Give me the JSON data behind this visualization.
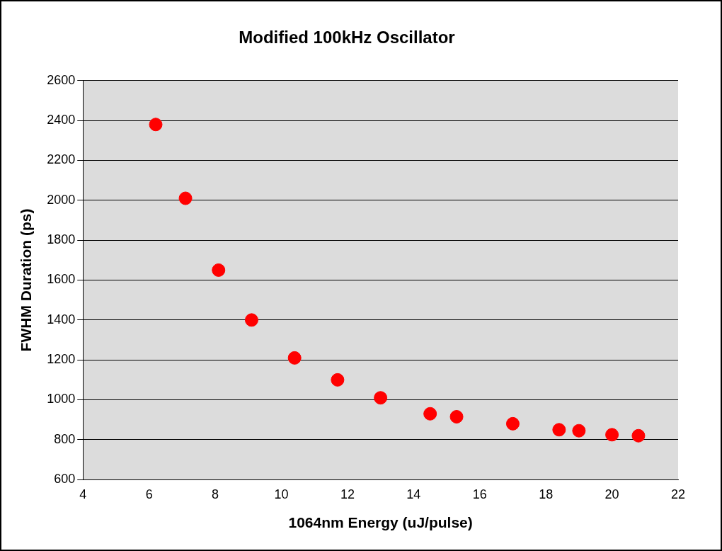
{
  "chart_data": {
    "type": "scatter",
    "title": "Modified 100kHz Oscillator",
    "xlabel": "1064nm Energy (uJ/pulse)",
    "ylabel": "FWHM Duration (ps)",
    "x": [
      6.2,
      7.1,
      8.1,
      9.1,
      10.4,
      11.7,
      13.0,
      14.5,
      15.3,
      17.0,
      18.4,
      19.0,
      20.0,
      20.8
    ],
    "values": [
      2380,
      2010,
      1650,
      1400,
      1210,
      1100,
      1010,
      930,
      915,
      880,
      850,
      845,
      825,
      820
    ],
    "color": "#ff0000",
    "marker": "circle",
    "xlim": [
      4,
      22
    ],
    "xticks": [
      4,
      6,
      8,
      10,
      12,
      14,
      16,
      18,
      20,
      22
    ],
    "ylim": [
      600,
      2600
    ],
    "yticks": [
      600,
      800,
      1000,
      1200,
      1400,
      1600,
      1800,
      2000,
      2200,
      2400,
      2600
    ],
    "grid": "y",
    "legend": false
  }
}
